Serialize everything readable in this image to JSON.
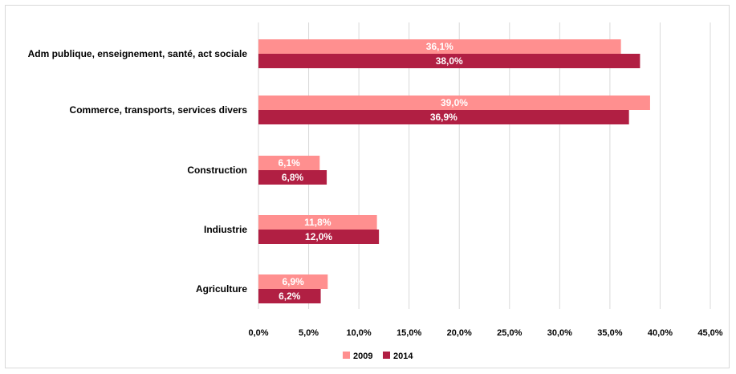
{
  "chart_data": {
    "type": "bar",
    "orientation": "horizontal",
    "title": "",
    "xlabel": "",
    "ylabel": "",
    "categories": [
      "Adm publique, enseignement, santé, act sociale",
      "Commerce, transports, services divers",
      "Construction",
      "Indiustrie",
      "Agriculture"
    ],
    "series": [
      {
        "name": "2009",
        "color": "#ff8f8f",
        "values": [
          36.1,
          39.0,
          6.1,
          11.8,
          6.9
        ],
        "labels": [
          "36,1%",
          "39,0%",
          "6,1%",
          "11,8%",
          "6,9%"
        ]
      },
      {
        "name": "2014",
        "color": "#b11f43",
        "values": [
          38.0,
          36.9,
          6.8,
          12.0,
          6.2
        ],
        "labels": [
          "38,0%",
          "36,9%",
          "6,8%",
          "12,0%",
          "6,2%"
        ]
      }
    ],
    "xlim": [
      0,
      45
    ],
    "xticks": [
      0,
      5,
      10,
      15,
      20,
      25,
      30,
      35,
      40,
      45
    ],
    "xtick_labels": [
      "0,0%",
      "5,0%",
      "10,0%",
      "15,0%",
      "20,0%",
      "25,0%",
      "30,0%",
      "35,0%",
      "40,0%",
      "45,0%"
    ],
    "grid": "vertical",
    "legend_position": "bottom"
  }
}
